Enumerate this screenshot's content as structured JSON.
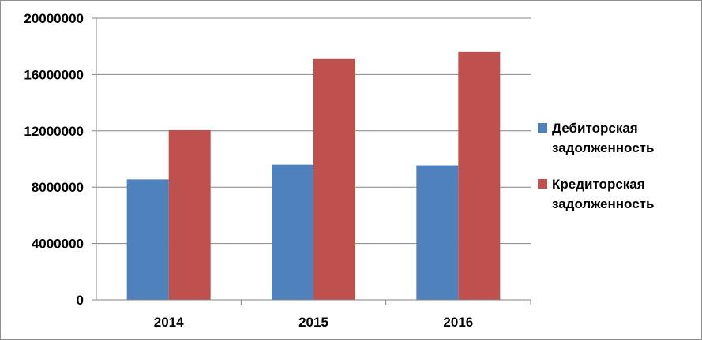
{
  "chart_data": {
    "type": "bar",
    "categories": [
      "2014",
      "2015",
      "2016"
    ],
    "series": [
      {
        "name": "Дебиторская задолженность",
        "values": [
          8550000,
          9600000,
          9550000
        ],
        "color": "#4f81bd",
        "legend_lines": [
          "Дебиторская",
          "задолженность"
        ]
      },
      {
        "name": "Кредиторская задолженность",
        "values": [
          12050000,
          17100000,
          17600000
        ],
        "color": "#c0504d",
        "legend_lines": [
          "Кредиторская",
          "задолженность"
        ]
      }
    ],
    "y_ticks": [
      "0",
      "4000000",
      "8000000",
      "12000000",
      "16000000",
      "20000000"
    ],
    "ylim": [
      0,
      20000000
    ],
    "grid": true,
    "legend_position": "right",
    "title": "",
    "xlabel": "",
    "ylabel": ""
  }
}
